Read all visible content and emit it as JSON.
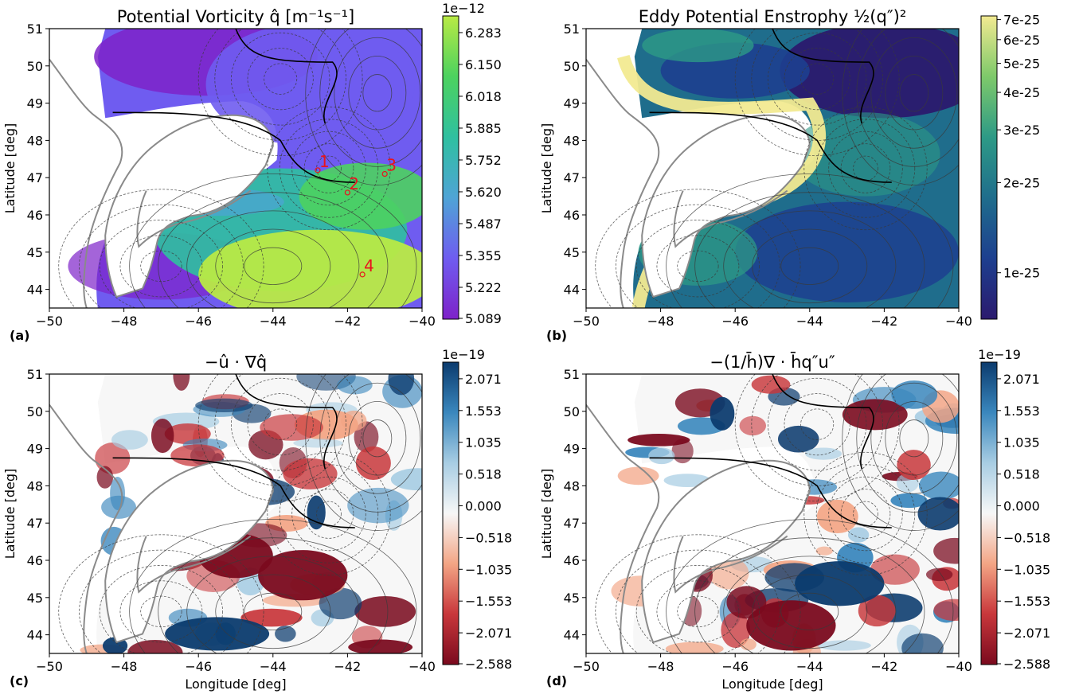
{
  "figure": {
    "x_tick_labels": [
      "−50",
      "−48",
      "−46",
      "−44",
      "−42",
      "−40"
    ],
    "y_tick_labels": [
      "44",
      "45",
      "46",
      "47",
      "48",
      "49",
      "50",
      "51"
    ],
    "x_label": "Longitude [deg]",
    "y_label": "Latitude [deg]"
  },
  "chart_data": [
    {
      "type": "heatmap",
      "panel_label": "(a)",
      "title": "Potential Vorticity q̂ [m⁻¹s⁻¹]",
      "xlabel": "",
      "ylabel": "Latitude [deg]",
      "xlim": [
        -50,
        -40
      ],
      "ylim": [
        43.5,
        51
      ],
      "colorbar": {
        "scale": "linear",
        "exponent_label": "1e−12",
        "ticks": [
          "6.283",
          "6.150",
          "6.018",
          "5.885",
          "5.752",
          "5.620",
          "5.487",
          "5.355",
          "5.222",
          "5.089"
        ],
        "colormap": [
          "#7e22c9",
          "#6f5cf0",
          "#4fa4d6",
          "#2fc0a0",
          "#4cd25f",
          "#b9ea44"
        ]
      },
      "annotations": [
        {
          "label": "1",
          "x": -42.8,
          "y": 47.2
        },
        {
          "label": "2",
          "x": -42.0,
          "y": 46.6
        },
        {
          "label": "3",
          "x": -41.0,
          "y": 47.1
        },
        {
          "label": "4",
          "x": -41.6,
          "y": 44.4
        }
      ],
      "annotation_color": "#e8141e"
    },
    {
      "type": "heatmap",
      "panel_label": "(b)",
      "title": "Eddy Potential Enstrophy ½(q″)²",
      "xlabel": "",
      "ylabel": "Latitude [deg]",
      "xlim": [
        -50,
        -40
      ],
      "ylim": [
        43.5,
        51
      ],
      "colorbar": {
        "scale": "log",
        "ticks": [
          "7e-25",
          "6e-25",
          "5e-25",
          "4e-25",
          "3e-25",
          "2e-25",
          "1e-25"
        ],
        "colormap": [
          "#2b1a6e",
          "#1d3f8f",
          "#1f6d8c",
          "#2d9a86",
          "#7ec96a",
          "#f2ea91"
        ]
      }
    },
    {
      "type": "heatmap",
      "panel_label": "(c)",
      "title": "−û · ∇q̂",
      "xlabel": "Longitude [deg]",
      "ylabel": "Latitude [deg]",
      "xlim": [
        -50,
        -40
      ],
      "ylim": [
        43.5,
        51
      ],
      "colorbar": {
        "scale": "linear",
        "exponent_label": "1e−19",
        "ticks": [
          "2.071",
          "1.553",
          "1.035",
          "0.518",
          "0.000",
          "−0.518",
          "−1.035",
          "−1.553",
          "−2.071",
          "−2.588"
        ],
        "colormap": [
          "#7a0a1e",
          "#c8373b",
          "#f3a585",
          "#f7f7f7",
          "#a8cde3",
          "#3a87bd",
          "#0b3b6e"
        ]
      }
    },
    {
      "type": "heatmap",
      "panel_label": "(d)",
      "title": "−(1/h̄)∇ · h̄q″u″",
      "xlabel": "Longitude [deg]",
      "ylabel": "Latitude [deg]",
      "xlim": [
        -50,
        -40
      ],
      "ylim": [
        43.5,
        51
      ],
      "colorbar": {
        "scale": "linear",
        "exponent_label": "1e−19",
        "ticks": [
          "2.071",
          "1.553",
          "1.035",
          "0.518",
          "0.000",
          "−0.518",
          "−1.035",
          "−1.553",
          "−2.071",
          "−2.588"
        ],
        "colormap": [
          "#7a0a1e",
          "#c8373b",
          "#f3a585",
          "#f7f7f7",
          "#a8cde3",
          "#3a87bd",
          "#0b3b6e"
        ]
      }
    }
  ]
}
